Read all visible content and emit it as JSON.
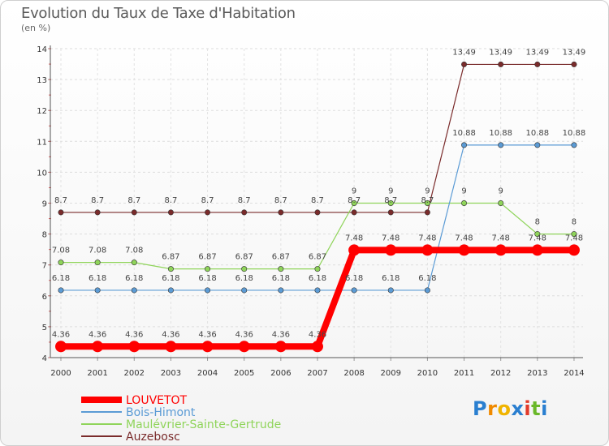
{
  "title": "Evolution du Taux de Taxe d'Habitation",
  "unit": "(en %)",
  "logo": {
    "letters": [
      "P",
      "r",
      "o",
      "x",
      "i",
      "t",
      "i"
    ],
    "colors": [
      "#2a7fd0",
      "#f08a00",
      "#f0b400",
      "#2a7fd0",
      "#e23b2a",
      "#6ab82a",
      "#2a7fd0"
    ]
  },
  "chart_data": {
    "type": "line",
    "x": [
      "2000",
      "2001",
      "2002",
      "2003",
      "2004",
      "2005",
      "2006",
      "2007",
      "2008",
      "2009",
      "2010",
      "2011",
      "2012",
      "2013",
      "2014"
    ],
    "yticks": [
      "4",
      "5",
      "6",
      "7",
      "8",
      "9",
      "10",
      "11",
      "12",
      "13",
      "14"
    ],
    "ylim": [
      4,
      14
    ],
    "title": "Evolution du Taux de Taxe d'Habitation",
    "ylabel": "(en %)",
    "legend_position": "bottom-left",
    "series": [
      {
        "name": "LOUVETOT",
        "color": "#ff0000",
        "values": [
          4.36,
          4.36,
          4.36,
          4.36,
          4.36,
          4.36,
          4.36,
          4.36,
          7.48,
          7.48,
          7.48,
          7.48,
          7.48,
          7.48,
          7.48
        ],
        "labels": [
          "4.36",
          "4.36",
          "4.36",
          "4.36",
          "4.36",
          "4.36",
          "4.36",
          "4.36",
          "7.48",
          "7.48",
          "7.48",
          "7.48",
          "7.48",
          "7.48",
          "7.48"
        ]
      },
      {
        "name": "Bois-Himont",
        "color": "#5b9bd5",
        "values": [
          6.18,
          6.18,
          6.18,
          6.18,
          6.18,
          6.18,
          6.18,
          6.18,
          6.18,
          6.18,
          6.18,
          10.88,
          10.88,
          10.88,
          10.88
        ],
        "labels": [
          "6.18",
          "6.18",
          "6.18",
          "6.18",
          "6.18",
          "6.18",
          "6.18",
          "6.18",
          "6.18",
          "6.18",
          "6.18",
          "10.88",
          "10.88",
          "10.88",
          "10.88"
        ]
      },
      {
        "name": "Maulévrier-Sainte-Gertrude",
        "color": "#8fd45a",
        "values": [
          7.08,
          7.08,
          7.08,
          6.87,
          6.87,
          6.87,
          6.87,
          6.87,
          9,
          9,
          9,
          9,
          9,
          8,
          8
        ],
        "labels": [
          "7.08",
          "7.08",
          "7.08",
          "6.87",
          "6.87",
          "6.87",
          "6.87",
          "6.87",
          "9",
          "9",
          "9",
          "9",
          "9",
          "8",
          "8"
        ]
      },
      {
        "name": "Auzebosc",
        "color": "#7a2b2b",
        "values": [
          8.7,
          8.7,
          8.7,
          8.7,
          8.7,
          8.7,
          8.7,
          8.7,
          8.7,
          8.7,
          8.7,
          13.49,
          13.49,
          13.49,
          13.49
        ],
        "labels": [
          "8.7",
          "8.7",
          "8.7",
          "8.7",
          "8.7",
          "8.7",
          "8.7",
          "8.7",
          "8.7",
          "8.7",
          "8.7",
          "13.49",
          "13.49",
          "13.49",
          "13.49"
        ]
      }
    ]
  }
}
